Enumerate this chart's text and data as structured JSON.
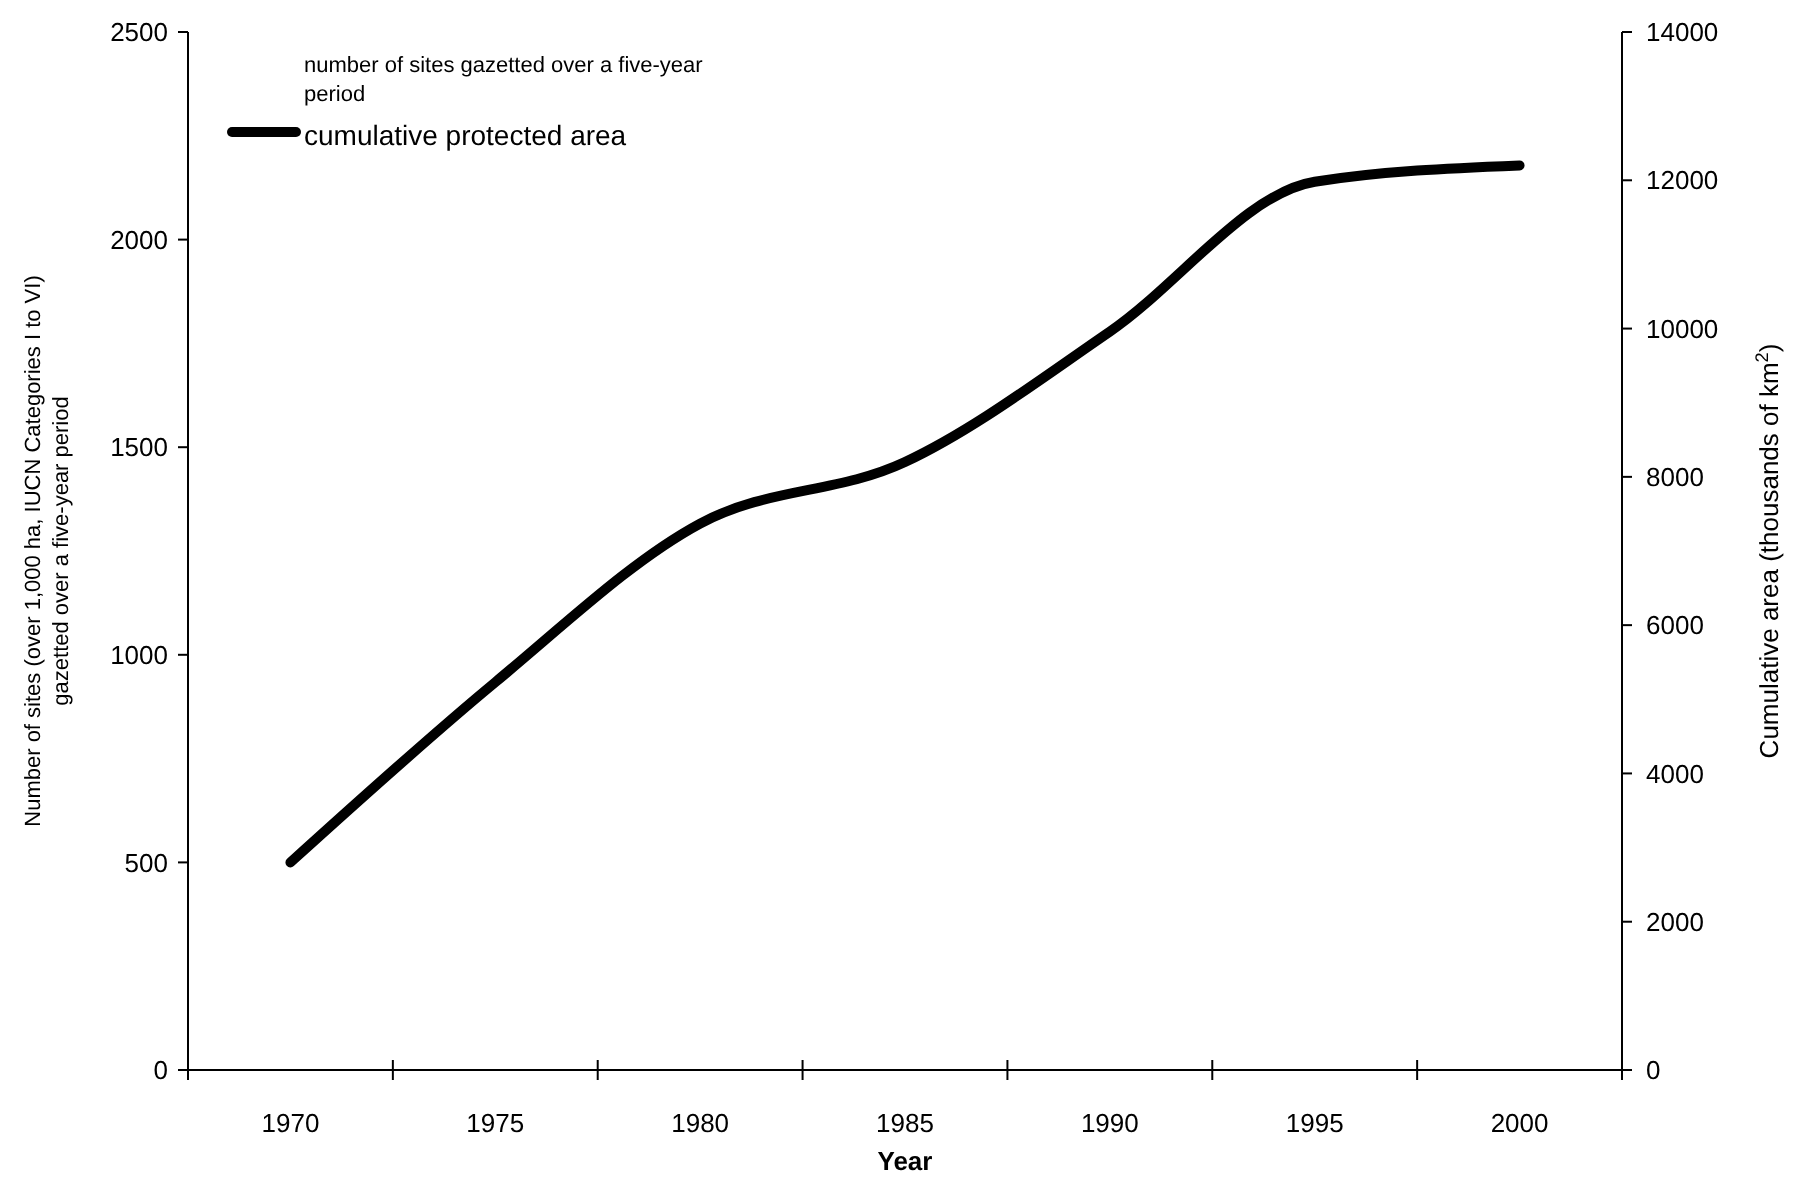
{
  "chart_data": {
    "type": "line",
    "xlabel": "Year",
    "ylabel": "Number of sites (over 1,000 ha, IUCN Categories I to VI)\ngazetted  over a five-year period",
    "y2label": "Cumulative area (thousands of km$^{2}$)",
    "categories": [
      "1970",
      "1975",
      "1980",
      "1985",
      "1990",
      "1995",
      "2000"
    ],
    "series": [
      {
        "name": "cumulative protected area",
        "color": "#000000",
        "axis": "y2",
        "values": [
          2800,
          5230,
          7370,
          8200,
          9960,
          11980,
          12200
        ]
      }
    ],
    "ylim": [
      0,
      2500
    ],
    "yticks": [
      0,
      500,
      1000,
      1500,
      2000,
      2500
    ],
    "y2lim": [
      0,
      14000
    ],
    "y2ticks": [
      0,
      2000,
      4000,
      6000,
      8000,
      10000,
      12000,
      14000
    ],
    "annotations": [
      "number of sites gazetted over a five-year period"
    ],
    "legend": "top left",
    "grid": false,
    "marker": "none",
    "line_style": "solid"
  }
}
